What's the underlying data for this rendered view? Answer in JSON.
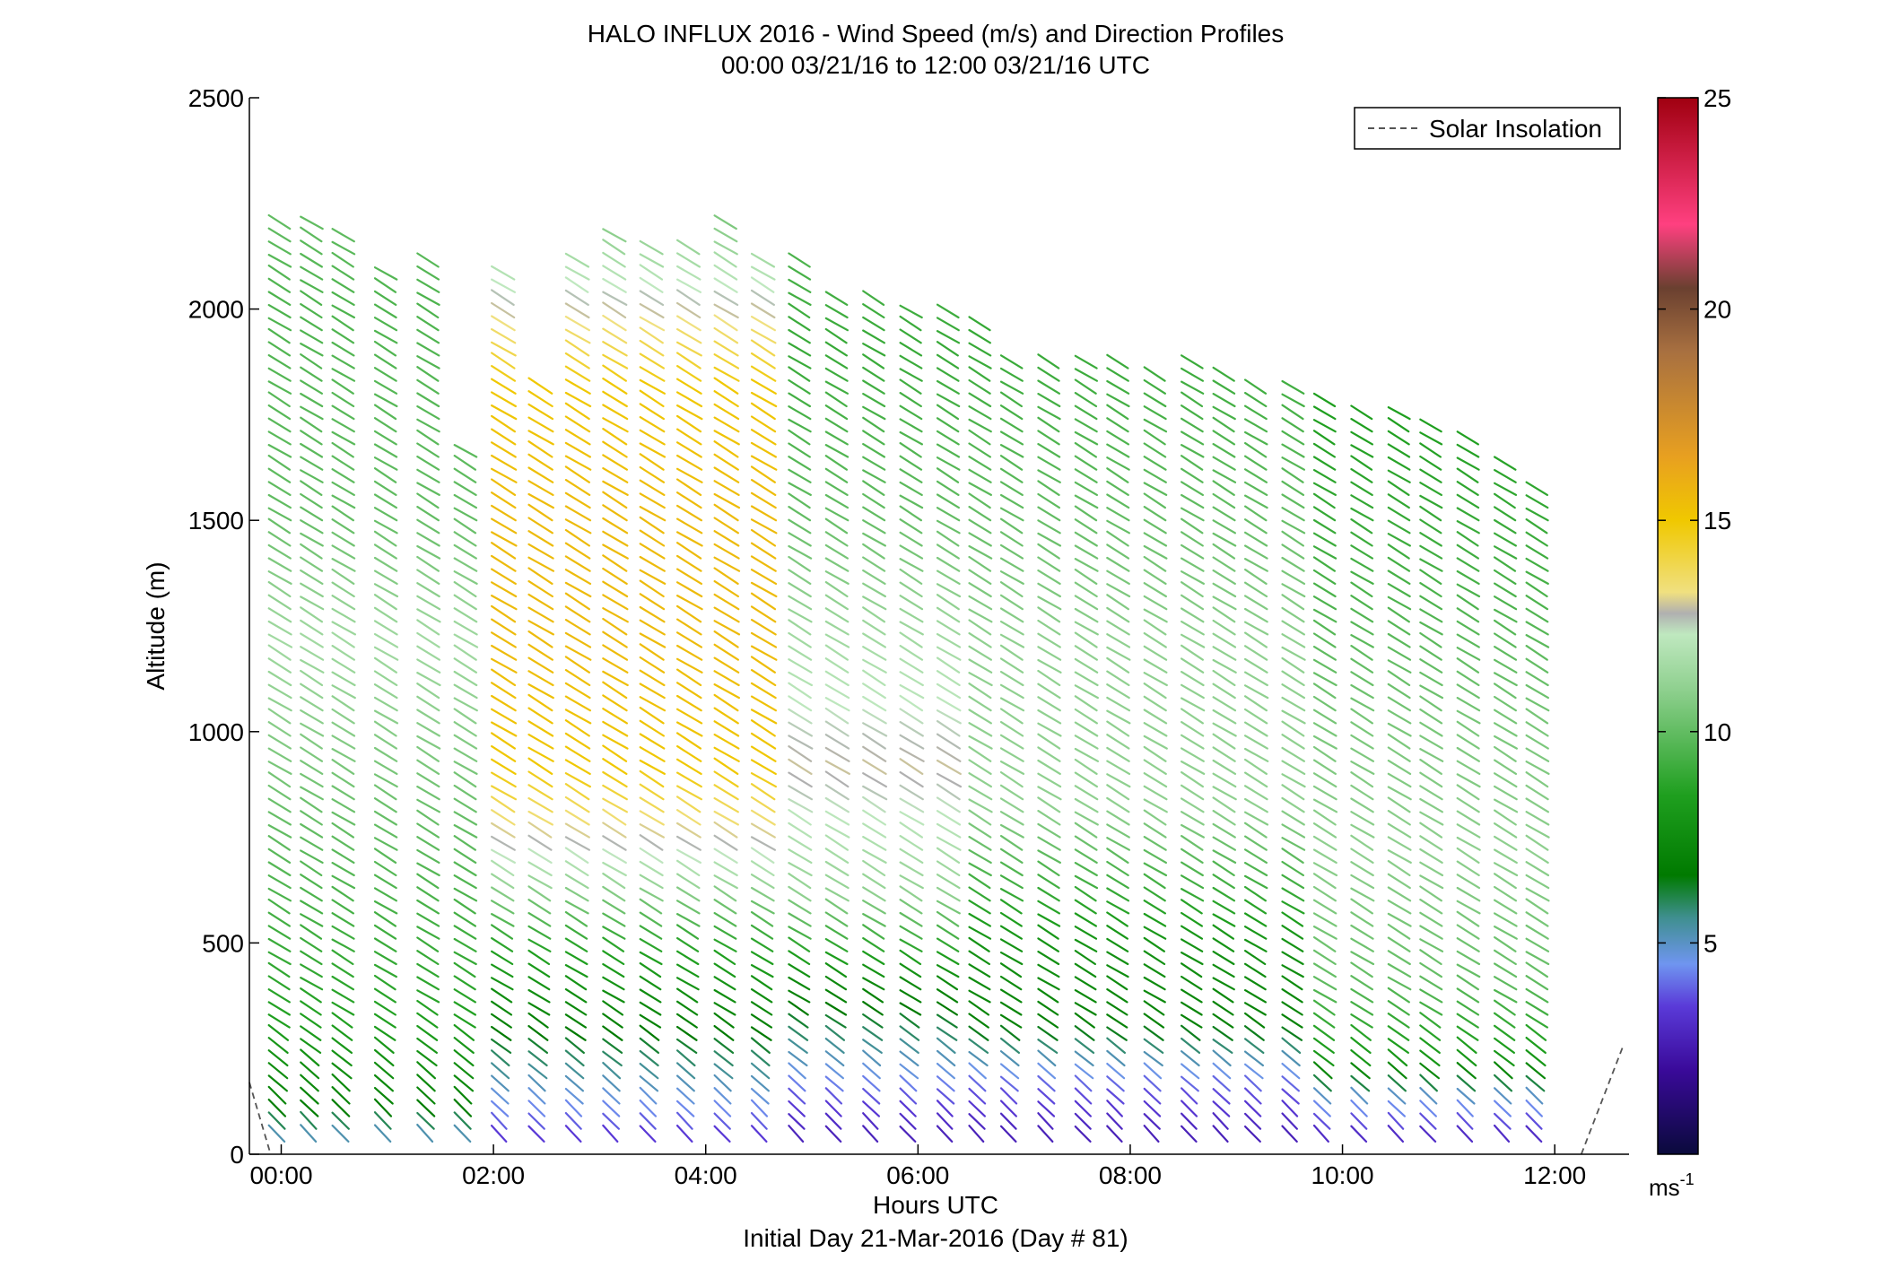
{
  "chart_data": {
    "type": "wind-barb-profile",
    "title": "HALO INFLUX 2016 - Wind Speed (m/s) and Direction Profiles",
    "subtitle": "00:00 03/21/16 to 12:00 03/21/16  UTC",
    "xlabel": "Hours UTC",
    "xlabel2": "Initial Day 21-Mar-2016 (Day # 81)",
    "ylabel": "Altitude (m)",
    "xlim": [
      -0.3,
      12.7
    ],
    "ylim": [
      0,
      2500
    ],
    "x_ticks": [
      0,
      2,
      4,
      6,
      8,
      10,
      12
    ],
    "x_tick_labels": [
      "00:00",
      "02:00",
      "04:00",
      "06:00",
      "08:00",
      "10:00",
      "12:00"
    ],
    "y_ticks": [
      0,
      500,
      1000,
      1500,
      2000,
      2500
    ],
    "y_tick_labels": [
      "0",
      "500",
      "1000",
      "1500",
      "2000",
      "2500"
    ],
    "colorbar": {
      "range": [
        0,
        25
      ],
      "ticks": [
        5,
        10,
        15,
        20,
        25
      ],
      "tick_labels": [
        "5",
        "10",
        "15",
        "20",
        "25"
      ],
      "unit_base": "ms",
      "unit_exp": "-1",
      "stops": [
        {
          "v": 0,
          "c": "#0a0a3c"
        },
        {
          "v": 2,
          "c": "#3a0a9a"
        },
        {
          "v": 3.5,
          "c": "#5a3ad8"
        },
        {
          "v": 4.5,
          "c": "#6f95f0"
        },
        {
          "v": 5.6,
          "c": "#3f8f8f"
        },
        {
          "v": 6.6,
          "c": "#007a00"
        },
        {
          "v": 8.5,
          "c": "#1f9f1f"
        },
        {
          "v": 11,
          "c": "#8fd08f"
        },
        {
          "v": 12.3,
          "c": "#bfe8bf"
        },
        {
          "v": 12.8,
          "c": "#b0b0b0"
        },
        {
          "v": 13.3,
          "c": "#f0e080"
        },
        {
          "v": 15,
          "c": "#f0c800"
        },
        {
          "v": 16.5,
          "c": "#e8a020"
        },
        {
          "v": 19,
          "c": "#a87040"
        },
        {
          "v": 20.5,
          "c": "#6a4030"
        },
        {
          "v": 22,
          "c": "#ff4080"
        },
        {
          "v": 25,
          "c": "#a00010"
        }
      ]
    },
    "legend": {
      "entries": [
        "Solar Insolation"
      ],
      "location": "top-right"
    },
    "solar_insolation": {
      "style": "dashed",
      "color": "#555555",
      "segments": [
        {
          "x": [
            -0.3,
            -0.1
          ],
          "y": [
            170,
            0
          ]
        },
        {
          "x": [
            12.25,
            12.65
          ],
          "y": [
            0,
            260
          ]
        }
      ]
    },
    "profile_times": [
      -0.1,
      0.2,
      0.5,
      0.9,
      1.3,
      1.65,
      2.0,
      2.35,
      2.7,
      3.05,
      3.4,
      3.75,
      4.1,
      4.45,
      4.8,
      5.15,
      5.5,
      5.85,
      6.2,
      6.5,
      6.8,
      7.15,
      7.5,
      7.8,
      8.15,
      8.5,
      8.8,
      9.1,
      9.45,
      9.75,
      10.1,
      10.45,
      10.75,
      11.1,
      11.45,
      11.75
    ],
    "profile_top_altitudes": [
      2210,
      2200,
      2160,
      2080,
      2120,
      1660,
      2080,
      1820,
      2120,
      2160,
      2150,
      2140,
      2200,
      2120,
      2120,
      2020,
      2020,
      2000,
      1980,
      1960,
      1880,
      1870,
      1860,
      1860,
      1850,
      1860,
      1850,
      1800,
      1820,
      1780,
      1760,
      1740,
      1720,
      1700,
      1640,
      1560
    ],
    "range_gate_m": 30,
    "direction_convention": "barb points toward lower-right (from upper-left) aloft; bottom gates fan toward east",
    "speed_profiles": [
      {
        "from_hour": -0.2,
        "to_hour": 1.7,
        "altitude_m": [
          0,
          100,
          300,
          600,
          900,
          1200,
          1500,
          2000,
          2200
        ],
        "speed_ms": [
          4.5,
          7,
          8.5,
          9.5,
          10.5,
          11.5,
          10,
          9.5,
          10
        ]
      },
      {
        "from_hour": 1.9,
        "to_hour": 4.6,
        "altitude_m": [
          0,
          100,
          300,
          500,
          700,
          900,
          1200,
          1500,
          1800,
          2200
        ],
        "speed_ms": [
          3,
          4.5,
          7,
          9,
          12.5,
          15,
          15.5,
          15.5,
          15,
          10.5
        ]
      },
      {
        "from_hour": 4.6,
        "to_hour": 6.5,
        "altitude_m": [
          0,
          100,
          200,
          400,
          600,
          900,
          1200,
          1500,
          1900,
          2100
        ],
        "speed_ms": [
          2.5,
          3.5,
          5,
          7.5,
          11,
          13,
          11.5,
          10,
          9,
          9.5
        ]
      },
      {
        "from_hour": 6.5,
        "to_hour": 9.5,
        "altitude_m": [
          0,
          60,
          150,
          300,
          500,
          800,
          1200,
          1500,
          1900
        ],
        "speed_ms": [
          2.5,
          3,
          4,
          7,
          8,
          11,
          11,
          10,
          9
        ]
      },
      {
        "from_hour": 9.5,
        "to_hour": 11.9,
        "altitude_m": [
          0,
          50,
          120,
          200,
          400,
          700,
          1000,
          1300,
          1700
        ],
        "speed_ms": [
          2.5,
          3.5,
          5,
          8,
          10,
          11,
          10.5,
          9.5,
          8.5
        ]
      }
    ]
  }
}
